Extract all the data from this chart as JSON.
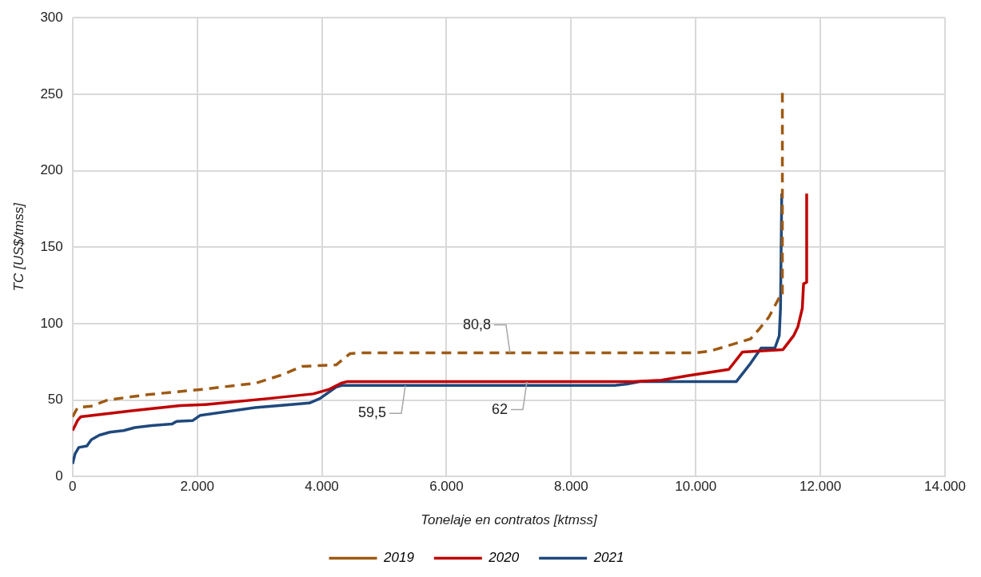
{
  "chart_data": {
    "type": "line",
    "xlabel": "Tonelaje en contratos [ktmss]",
    "ylabel": "TC [US$/tmss]",
    "xlim": [
      0,
      14000
    ],
    "xticks": [
      0,
      {
        "value": 2000,
        "label": "2.000"
      },
      {
        "value": 4000,
        "label": "4.000"
      },
      {
        "value": 6000,
        "label": "6.000"
      },
      {
        "value": 8000,
        "label": "8.000"
      },
      {
        "value": 10000,
        "label": "10.000"
      },
      {
        "value": 12000,
        "label": "12.000"
      },
      {
        "value": 14000,
        "label": "14.000"
      }
    ],
    "ylim": [
      0,
      300
    ],
    "yticks": [
      0,
      50,
      100,
      150,
      200,
      250,
      300
    ],
    "grid": true,
    "legend": "bottom",
    "marker": "none",
    "series": [
      {
        "name": "2019",
        "color": "#9e5a13",
        "line_style": "dashed",
        "x": [
          0,
          80,
          300,
          560,
          1200,
          2080,
          2940,
          3380,
          3680,
          4230,
          4450,
          4600,
          10000,
          10230,
          10560,
          10880,
          11010,
          11170,
          11340,
          11390,
          11390
        ],
        "values": [
          39,
          45,
          46,
          50,
          53.5,
          57,
          61,
          66.7,
          72,
          73,
          80.3,
          80.8,
          80.8,
          82,
          86,
          90,
          96,
          104,
          117,
          117,
          253
        ]
      },
      {
        "name": "2020",
        "color": "#c00000",
        "line_style": "solid",
        "x": [
          0,
          80,
          130,
          950,
          1730,
          2130,
          3150,
          3860,
          4120,
          4310,
          4400,
          9000,
          9450,
          9880,
          10530,
          10750,
          11400,
          11570,
          11640,
          11710,
          11730,
          11780,
          11780
        ],
        "values": [
          30,
          36.6,
          39,
          43,
          46.4,
          47,
          51,
          54,
          57,
          61,
          62,
          62,
          63,
          66,
          70,
          81.4,
          83,
          92,
          98,
          110,
          126,
          127,
          185
        ]
      },
      {
        "name": "2021",
        "color": "#1f497d",
        "line_style": "solid",
        "x": [
          0,
          40,
          100,
          230,
          300,
          430,
          600,
          820,
          1000,
          1270,
          1600,
          1670,
          1930,
          2050,
          2930,
          3800,
          3970,
          4230,
          4320,
          8700,
          8900,
          9100,
          10650,
          10880,
          11050,
          11270,
          11340,
          11360,
          11380
        ],
        "values": [
          8.2,
          14.8,
          19,
          20,
          24,
          27,
          29,
          30,
          32,
          33.3,
          34.4,
          36,
          36.6,
          40,
          45,
          48,
          51,
          58.5,
          59.5,
          59.5,
          60.5,
          62,
          62,
          74,
          84,
          84,
          92,
          110,
          185
        ]
      }
    ],
    "annotations": [
      {
        "text": "80,8",
        "x": 7020,
        "y": 80.8
      },
      {
        "text": "59,5",
        "x": 5340,
        "y": 59.5
      },
      {
        "text": "62",
        "x": 7290,
        "y": 62
      }
    ]
  }
}
